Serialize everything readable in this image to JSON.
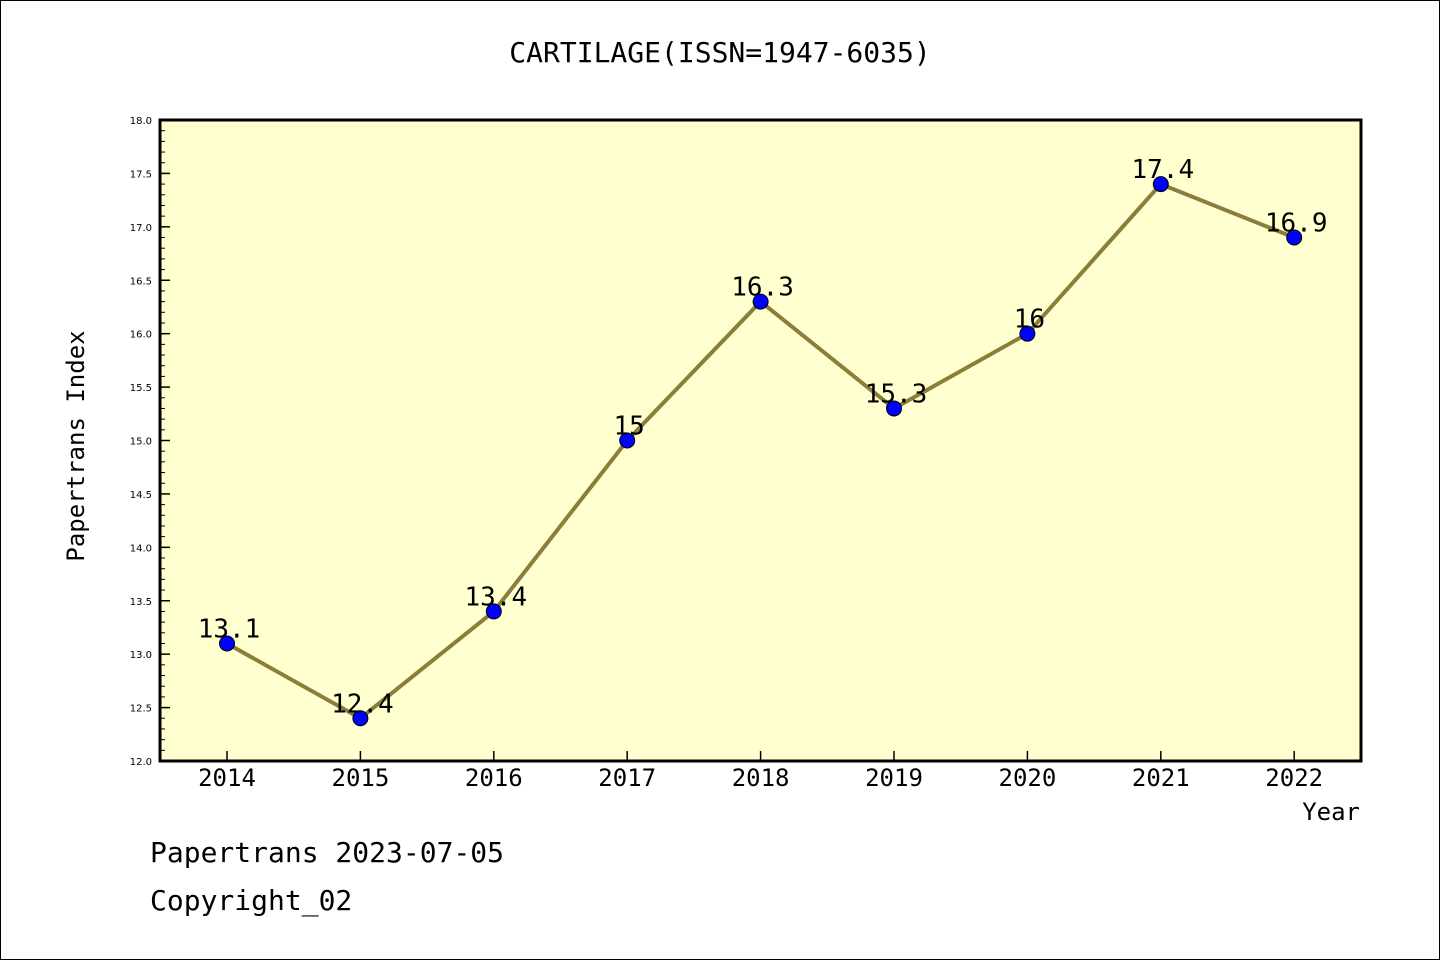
{
  "title": "CARTILAGE(ISSN=1947-6035)",
  "footer": {
    "date_line": "Papertrans 2023-07-05",
    "copyright": "Copyright_02"
  },
  "colors": {
    "plot_background": "#ffffd0",
    "line": "#8b7d3a",
    "marker": "#0000ff"
  },
  "chart_data": {
    "type": "line",
    "categories": [
      "2014",
      "2015",
      "2016",
      "2017",
      "2018",
      "2019",
      "2020",
      "2021",
      "2022"
    ],
    "series": [
      {
        "values": [
          13.1,
          12.4,
          13.4,
          15.0,
          16.3,
          15.3,
          16.0,
          17.4,
          16.9
        ]
      }
    ],
    "data_labels": [
      "13.1",
      "12.4",
      "13.4",
      "15",
      "16.3",
      "15.3",
      "16",
      "17.4",
      "16.9"
    ],
    "xlabel": "Year",
    "ylabel": "Papertrans Index",
    "ylim": [
      12.0,
      18.0
    ],
    "yticks": [
      "12.0",
      "12.5",
      "13.0",
      "13.5",
      "14.0",
      "14.5",
      "15.0",
      "15.5",
      "16.0",
      "16.5",
      "17.0",
      "17.5",
      "18.0"
    ],
    "grid": false,
    "legend": "none"
  }
}
